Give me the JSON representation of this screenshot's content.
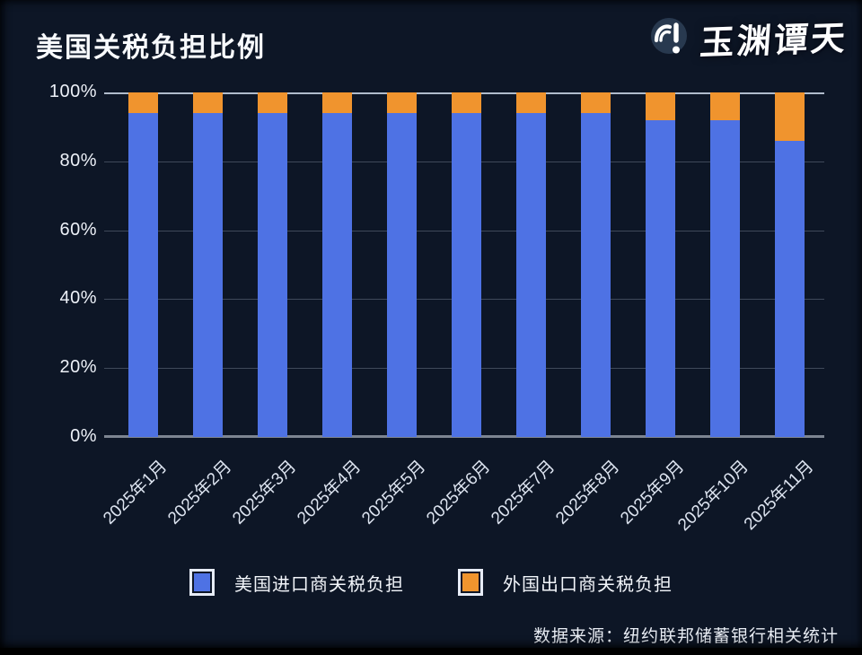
{
  "title": "美国关税负担比例",
  "logo": {
    "text": "玉渊谭天"
  },
  "source": "数据来源：纽约联邦储蓄银行相关统计",
  "colors": {
    "background": "#0d1626",
    "importer_blue": "#4e72e4",
    "exporter_orange": "#f0942e",
    "gridline": "rgba(210,220,238,0.26)",
    "baseline": "#7d8591"
  },
  "chart_data": {
    "type": "bar",
    "stacked": true,
    "title": "美国关税负担比例",
    "categories": [
      "2025年1月",
      "2025年2月",
      "2025年3月",
      "2025年4月",
      "2025年5月",
      "2025年6月",
      "2025年7月",
      "2025年8月",
      "2025年9月",
      "2025年10月",
      "2025年11月"
    ],
    "series": [
      {
        "name": "美国进口商关税负担",
        "color": "#4e72e4",
        "values": [
          94,
          94,
          94,
          94,
          94,
          94,
          94,
          94,
          92,
          92,
          86
        ]
      },
      {
        "name": "外国出口商关税负担",
        "color": "#f0942e",
        "values": [
          6,
          6,
          6,
          6,
          6,
          6,
          6,
          6,
          8,
          8,
          14
        ]
      }
    ],
    "yticks": [
      {
        "label": "100%",
        "value": 100
      },
      {
        "label": "80%",
        "value": 80
      },
      {
        "label": "60%",
        "value": 60
      },
      {
        "label": "40%",
        "value": 40
      },
      {
        "label": "20%",
        "value": 20
      },
      {
        "label": "0%",
        "value": 0
      }
    ],
    "ylim": [
      0,
      100
    ],
    "xlabel": "",
    "ylabel": "",
    "grid": true,
    "legend_position": "bottom",
    "source_note": "数据来源：纽约联邦储蓄银行相关统计"
  },
  "legend": [
    {
      "label": "美国进口商关税负担",
      "color": "#4e72e4"
    },
    {
      "label": "外国出口商关税负担",
      "color": "#f0942e"
    }
  ]
}
